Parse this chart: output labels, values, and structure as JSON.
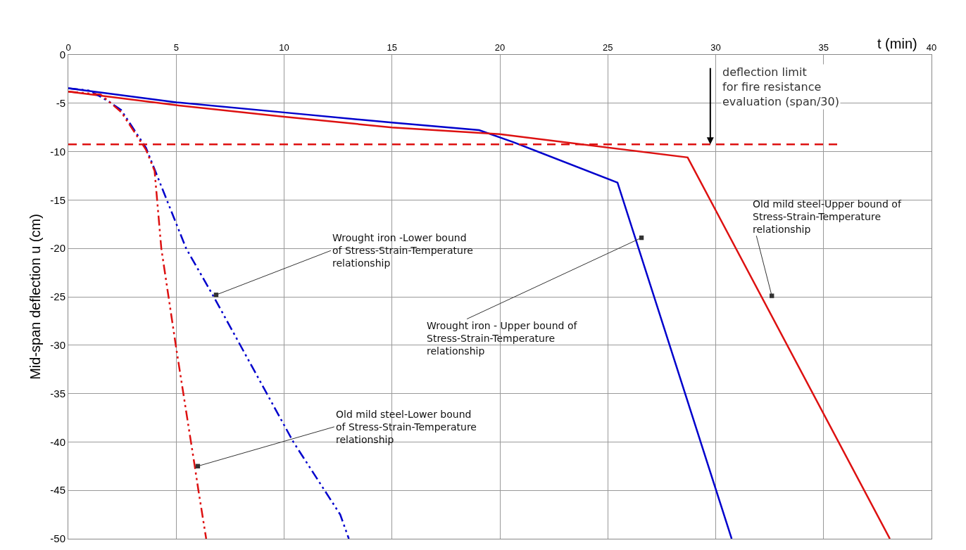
{
  "chart_data": {
    "type": "line",
    "xlabel": "t (min)",
    "ylabel": "Mid-span deflection u (cm)",
    "xlim": [
      0,
      40
    ],
    "xticks": [
      0,
      5,
      10,
      15,
      20,
      25,
      30,
      35,
      40
    ],
    "ylim": [
      -50,
      0
    ],
    "yticks": [
      -50,
      -45,
      -40,
      -35,
      -30,
      -25,
      -20,
      -15,
      -10,
      -5,
      0
    ],
    "grid": true,
    "marker": "none",
    "series": [
      {
        "color": "#0000cc",
        "line_style": "solid",
        "x": [
          0,
          5,
          10,
          15,
          19.04,
          20.6,
          25.45,
          30.74
        ],
        "values": [
          -3.45,
          -4.9,
          -5.95,
          -7.0,
          -7.78,
          -9.0,
          -13.2,
          -50
        ]
      },
      {
        "color": "#dd1111",
        "line_style": "solid",
        "x": [
          0,
          5,
          10,
          15,
          20,
          28.7,
          38.07
        ],
        "values": [
          -3.8,
          -5.2,
          -6.4,
          -7.5,
          -8.2,
          -10.6,
          -50
        ]
      },
      {
        "color": "#0000cc",
        "line_style": "dashed",
        "x": [
          0,
          1.0,
          1.9,
          2.45,
          3.6,
          5.46,
          6.74,
          10.43,
          12.6,
          13.0
        ],
        "values": [
          -3.45,
          -3.7,
          -4.85,
          -5.7,
          -9.6,
          -20,
          -25,
          -40,
          -47.5,
          -50
        ]
      },
      {
        "color": "#dd1111",
        "line_style": "dashed",
        "x": [
          0,
          1.5,
          2.45,
          3.6,
          4.0,
          4.31,
          4.98,
          5.86,
          6.03,
          6.39
        ],
        "values": [
          -3.8,
          -4.1,
          -5.9,
          -9.8,
          -12,
          -20,
          -30,
          -42.5,
          -45,
          -50
        ]
      }
    ],
    "ref_lines": [
      {
        "axis": "y",
        "value": -9.25,
        "color": "#dd1111",
        "line_style": "dashed"
      }
    ],
    "annotations": [
      {
        "text": "deflection limit\nfor fire resistance\nevaluation (span/30)",
        "x": 29.75,
        "y": -9.25
      },
      {
        "text": "Wrought iron -Lower bound\nof Stress-Strain-Temperature\nrelationship",
        "x": 6.85,
        "y": -24.8
      },
      {
        "text": "Wrought iron - Upper bound of\nStress-Strain-Temperature\nrelationship",
        "x": 26.56,
        "y": -18.9
      },
      {
        "text": "Old mild steel-Upper bound of\nStress-Strain-Temperature\nrelationship",
        "x": 32.6,
        "y": -24.9
      },
      {
        "text": "Old mild steel-Lower bound\nof Stress-Strain-Temperature\nrelationship",
        "x": 6.0,
        "y": -42.5
      }
    ]
  }
}
